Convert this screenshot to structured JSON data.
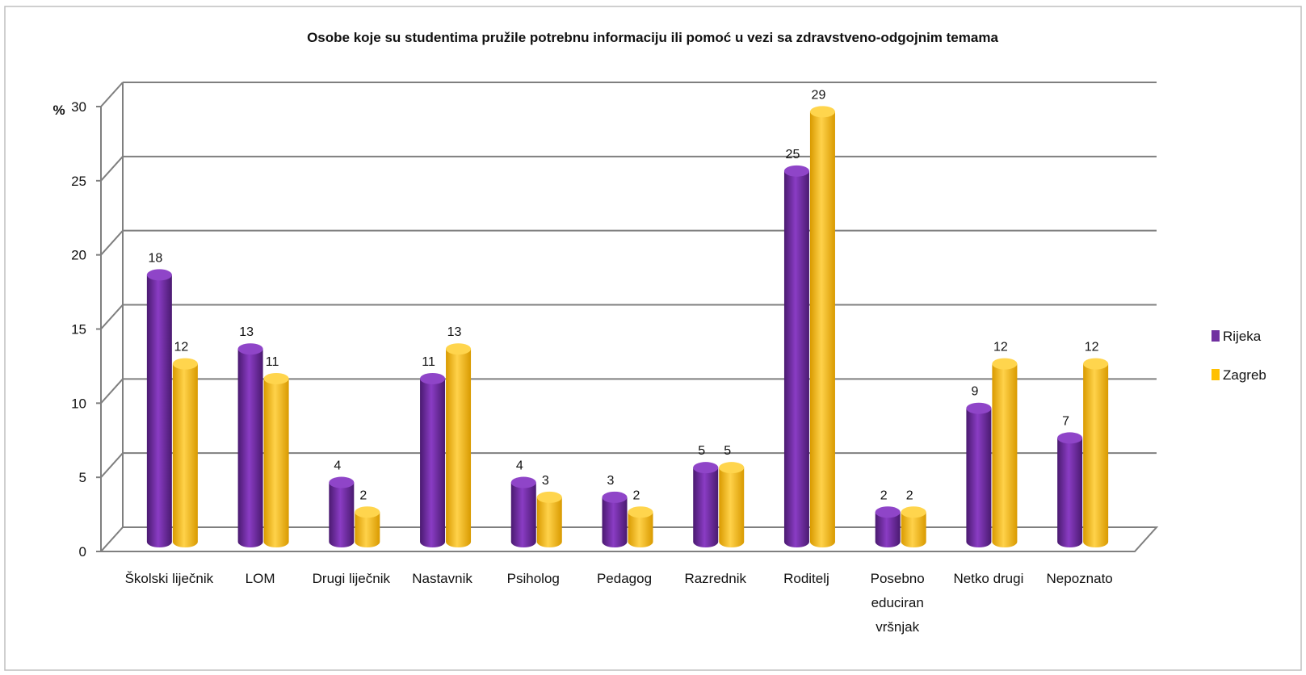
{
  "chart_data": {
    "type": "bar",
    "title": "Osobe koje su studentima pružile potrebnu informaciju ili pomoć u vezi sa zdravstveno-odgojnim  temama",
    "ylabel": "%",
    "ylim": [
      0,
      30
    ],
    "yticks": [
      0,
      5,
      10,
      15,
      20,
      25,
      30
    ],
    "grid": true,
    "legend_position": "right",
    "categories": [
      [
        "Školski liječnik"
      ],
      [
        "LOM"
      ],
      [
        "Drugi liječnik"
      ],
      [
        "Nastavnik"
      ],
      [
        "Psiholog"
      ],
      [
        "Pedagog"
      ],
      [
        "Razrednik"
      ],
      [
        "Roditelj"
      ],
      [
        "Posebno",
        "educiran",
        "vršnjak"
      ],
      [
        "Netko drugi"
      ],
      [
        "Nepoznato"
      ]
    ],
    "series": [
      {
        "name": "Rijeka",
        "color": "#7030a0",
        "values": [
          18,
          13,
          4,
          11,
          4,
          3,
          5,
          25,
          2,
          9,
          7
        ]
      },
      {
        "name": "Zagreb",
        "color": "#ffc000",
        "values": [
          12,
          11,
          2,
          13,
          3,
          2,
          5,
          29,
          2,
          12,
          12
        ]
      }
    ]
  }
}
